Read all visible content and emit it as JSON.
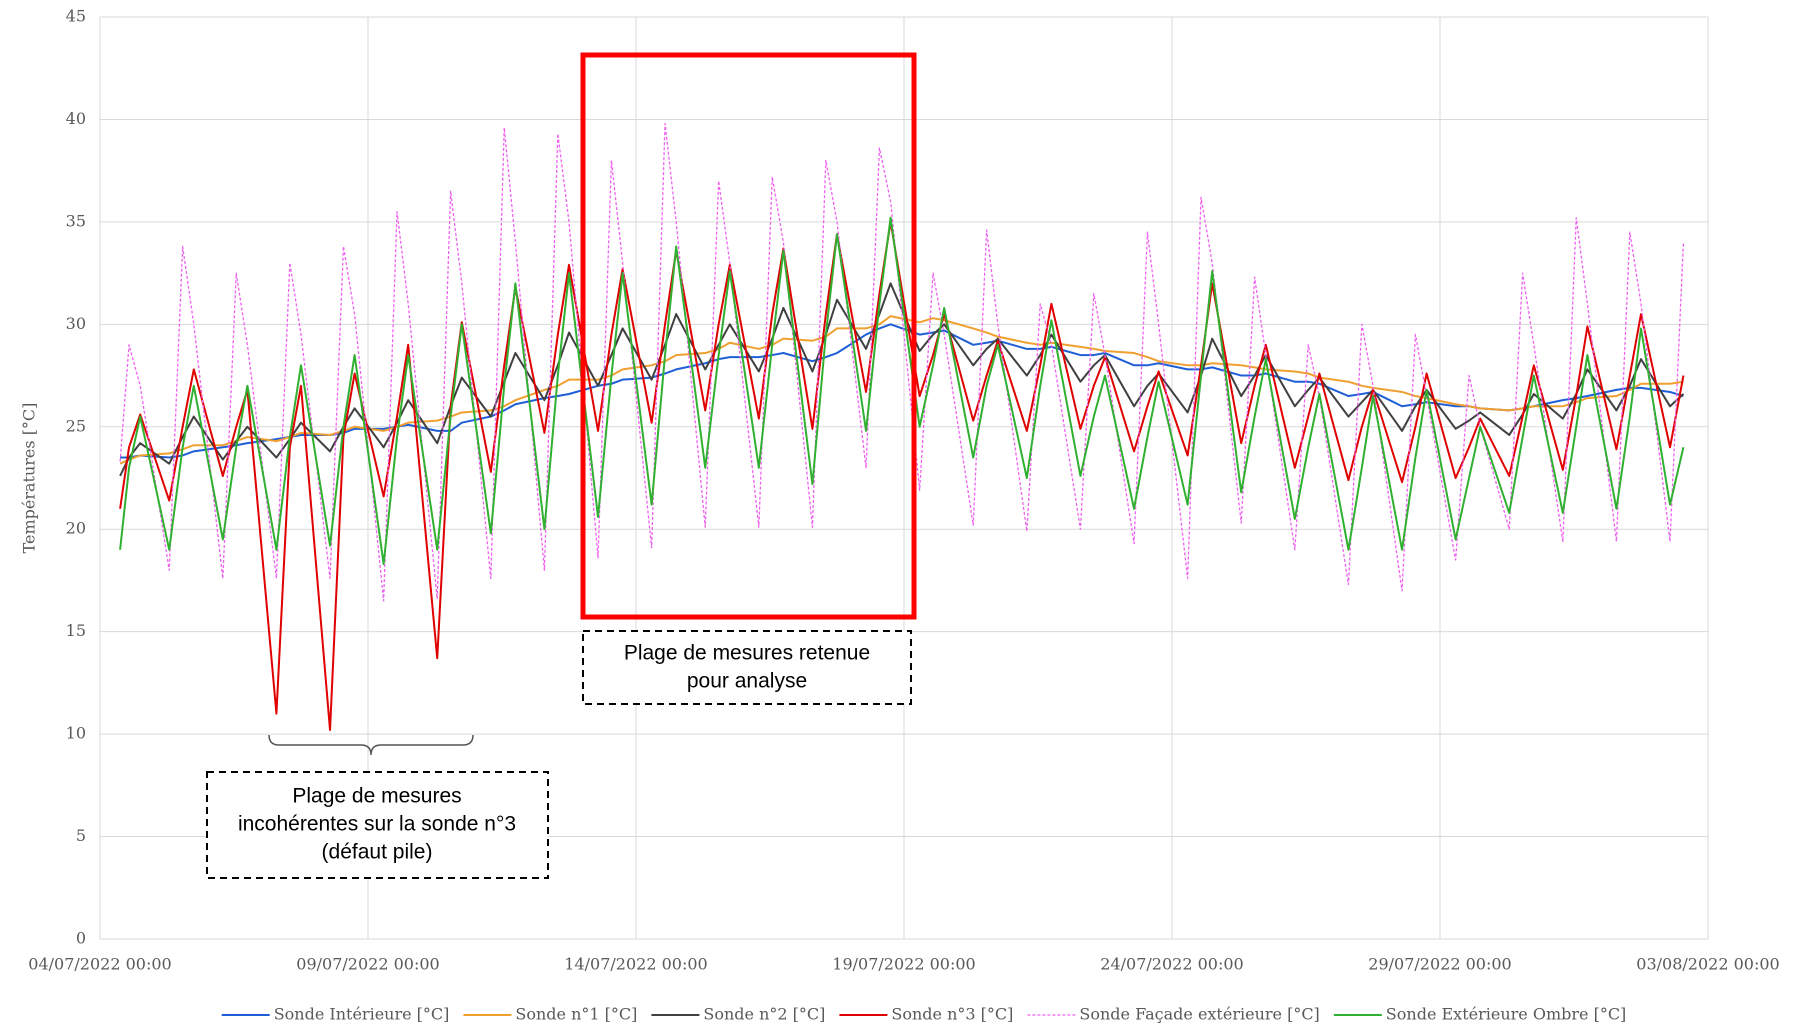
{
  "chart_data": {
    "type": "line",
    "ylabel": "Températures [°C]",
    "ylim": [
      0,
      45
    ],
    "yticks": [
      0,
      5,
      10,
      15,
      20,
      25,
      30,
      35,
      40,
      45
    ],
    "xlim": [
      "04/07/2022 00:00",
      "03/08/2022 00:00"
    ],
    "xticks": [
      "04/07/2022 00:00",
      "09/07/2022 00:00",
      "14/07/2022 00:00",
      "19/07/2022 00:00",
      "24/07/2022 00:00",
      "29/07/2022 00:00",
      "03/08/2022 00:00"
    ],
    "grid": true,
    "legend": "bottom",
    "annotations": [
      {
        "lines": [
          "Plage de mesures retenue",
          "pour analyse"
        ]
      },
      {
        "lines": [
          "Plage de mesures",
          "incohérentes sur la sonde n°3",
          "(défaut pile)"
        ]
      }
    ],
    "x": [
      "04/07/2022 09:00",
      "04/07/2022 13:00",
      "04/07/2022 18:00",
      "05/07/2022 07:00",
      "05/07/2022 13:00",
      "05/07/2022 18:00",
      "06/07/2022 07:00",
      "06/07/2022 13:00",
      "06/07/2022 18:00",
      "07/07/2022 07:00",
      "07/07/2022 13:00",
      "07/07/2022 18:00",
      "08/07/2022 07:00",
      "08/07/2022 13:00",
      "08/07/2022 18:00",
      "09/07/2022 07:00",
      "09/07/2022 13:00",
      "09/07/2022 18:00",
      "10/07/2022 07:00",
      "10/07/2022 13:00",
      "10/07/2022 18:00",
      "11/07/2022 07:00",
      "11/07/2022 13:00",
      "11/07/2022 18:00",
      "12/07/2022 07:00",
      "12/07/2022 13:00",
      "12/07/2022 18:00",
      "13/07/2022 07:00",
      "13/07/2022 13:00",
      "13/07/2022 18:00",
      "14/07/2022 07:00",
      "14/07/2022 13:00",
      "14/07/2022 18:00",
      "15/07/2022 07:00",
      "15/07/2022 13:00",
      "15/07/2022 18:00",
      "16/07/2022 07:00",
      "16/07/2022 13:00",
      "16/07/2022 18:00",
      "17/07/2022 07:00",
      "17/07/2022 13:00",
      "17/07/2022 18:00",
      "18/07/2022 07:00",
      "18/07/2022 13:00",
      "18/07/2022 18:00",
      "19/07/2022 07:00",
      "19/07/2022 13:00",
      "19/07/2022 18:00",
      "20/07/2022 07:00",
      "20/07/2022 13:00",
      "20/07/2022 18:00",
      "21/07/2022 07:00",
      "21/07/2022 13:00",
      "21/07/2022 18:00",
      "22/07/2022 07:00",
      "22/07/2022 13:00",
      "22/07/2022 18:00",
      "23/07/2022 07:00",
      "23/07/2022 13:00",
      "23/07/2022 18:00",
      "24/07/2022 07:00",
      "24/07/2022 13:00",
      "24/07/2022 18:00",
      "25/07/2022 07:00",
      "25/07/2022 13:00",
      "25/07/2022 18:00",
      "26/07/2022 07:00",
      "26/07/2022 13:00",
      "26/07/2022 18:00",
      "27/07/2022 07:00",
      "27/07/2022 13:00",
      "27/07/2022 18:00",
      "28/07/2022 07:00",
      "28/07/2022 13:00",
      "28/07/2022 18:00",
      "29/07/2022 07:00",
      "29/07/2022 13:00",
      "29/07/2022 18:00",
      "30/07/2022 07:00",
      "30/07/2022 13:00",
      "30/07/2022 18:00",
      "31/07/2022 07:00",
      "31/07/2022 13:00",
      "31/07/2022 18:00",
      "01/08/2022 07:00",
      "01/08/2022 13:00",
      "01/08/2022 18:00",
      "02/08/2022 07:00",
      "02/08/2022 13:00"
    ],
    "series": [
      {
        "name": "Sonde Intérieure [°C]",
        "color": "#1f5fd6",
        "dashed": false,
        "values": [
          23.5,
          23.5,
          23.6,
          23.5,
          23.6,
          23.8,
          24,
          24.1,
          24.2,
          24.4,
          24.5,
          24.6,
          24.6,
          24.7,
          24.9,
          24.9,
          25,
          25.1,
          24.8,
          24.8,
          25.2,
          25.5,
          25.8,
          26.1,
          26.4,
          26.5,
          26.6,
          27,
          27.1,
          27.3,
          27.4,
          27.6,
          27.8,
          28.1,
          28.3,
          28.4,
          28.4,
          28.5,
          28.6,
          28.2,
          28.4,
          28.6,
          29.5,
          29.8,
          30,
          29.5,
          29.6,
          29.7,
          29,
          29.1,
          29.2,
          28.8,
          28.8,
          28.9,
          28.5,
          28.5,
          28.6,
          28,
          28,
          28.1,
          27.8,
          27.8,
          27.9,
          27.5,
          27.5,
          27.6,
          27.2,
          27.2,
          27.1,
          26.5,
          26.6,
          26.7,
          26,
          26.1,
          26.2,
          26,
          26,
          25.9,
          25.8,
          25.9,
          26,
          26.3,
          26.4,
          26.5,
          26.8,
          26.9,
          26.9,
          26.7,
          26.5
        ]
      },
      {
        "name": "Sonde n°1 [°C]",
        "color": "#f0a030",
        "dashed": false,
        "values": [
          23.2,
          23.4,
          23.6,
          23.7,
          23.9,
          24.1,
          24.1,
          24.3,
          24.5,
          24.3,
          24.5,
          24.7,
          24.6,
          24.8,
          25,
          24.8,
          25,
          25.2,
          25.3,
          25.5,
          25.7,
          25.8,
          26,
          26.3,
          26.8,
          27,
          27.3,
          27.3,
          27.5,
          27.8,
          28,
          28.2,
          28.5,
          28.6,
          28.8,
          29.1,
          28.8,
          29,
          29.3,
          29.2,
          29.4,
          29.8,
          29.8,
          30,
          30.4,
          30.1,
          30.3,
          30.2,
          29.8,
          29.6,
          29.4,
          29.1,
          29,
          29.1,
          28.9,
          28.8,
          28.7,
          28.6,
          28.4,
          28.2,
          28,
          28,
          28.1,
          28,
          27.9,
          27.8,
          27.7,
          27.6,
          27.4,
          27.2,
          27,
          26.9,
          26.7,
          26.5,
          26.4,
          26.1,
          26,
          25.9,
          25.8,
          25.9,
          26,
          26,
          26.2,
          26.4,
          26.5,
          26.8,
          27.1,
          27.1,
          27.2
        ]
      },
      {
        "name": "Sonde n°2 [°C]",
        "color": "#404040",
        "dashed": false,
        "values": [
          22.6,
          23.5,
          24.2,
          23.2,
          24.5,
          25.5,
          23.4,
          24.3,
          25,
          23.5,
          24.4,
          25.2,
          23.8,
          25,
          25.9,
          24,
          25.2,
          26.3,
          24.2,
          26,
          27.4,
          25.5,
          27.2,
          28.6,
          26.3,
          28,
          29.6,
          27,
          28.5,
          29.8,
          27.3,
          29,
          30.5,
          27.8,
          29,
          30,
          27.7,
          29.3,
          30.8,
          27.7,
          29.5,
          31.2,
          28.8,
          30.5,
          32,
          28.7,
          29.5,
          30,
          28,
          28.8,
          29.3,
          27.5,
          28.5,
          29.5,
          27.2,
          28,
          28.5,
          26,
          27,
          27.6,
          25.7,
          27.5,
          29.3,
          26.5,
          27.5,
          28.5,
          26,
          26.8,
          27.4,
          25.5,
          26.2,
          26.8,
          24.8,
          26,
          26.8,
          24.9,
          25.3,
          25.7,
          24.6,
          25.6,
          26.6,
          25.4,
          26.6,
          27.8,
          25.8,
          27,
          28.3,
          26,
          26.6
        ]
      },
      {
        "name": "Sonde n°3 [°C]",
        "color": "#e00000",
        "dashed": false,
        "values": [
          21,
          24,
          25.6,
          21.4,
          25,
          27.8,
          22.6,
          25,
          26.8,
          11,
          24,
          27,
          10.2,
          24.5,
          27.6,
          21.6,
          25.5,
          29,
          13.7,
          26,
          30.1,
          22.8,
          28,
          31.8,
          24.7,
          29.5,
          32.9,
          24.8,
          29.5,
          32.7,
          25.2,
          30,
          33.6,
          25.8,
          30,
          32.9,
          25.4,
          30.5,
          33.7,
          24.9,
          30.5,
          34.4,
          26.7,
          31.5,
          35,
          26.5,
          28.5,
          30.5,
          25.3,
          27.5,
          29.2,
          24.8,
          28,
          31,
          24.9,
          27,
          28.4,
          23.8,
          26,
          27.7,
          23.6,
          28,
          32,
          24.2,
          27,
          29,
          23,
          25.5,
          27.6,
          22.4,
          25,
          26.8,
          22.3,
          25,
          27.6,
          22.5,
          24,
          25.4,
          22.6,
          25.5,
          28,
          22.9,
          26.5,
          29.9,
          23.9,
          27.5,
          30.5,
          24,
          27.5
        ]
      },
      {
        "name": "Sonde Façade extérieure [°C]",
        "color": "#f060f0",
        "dashed": true,
        "values": [
          23.3,
          29,
          27,
          18,
          33.8,
          30,
          17.6,
          32.5,
          29,
          17.6,
          33,
          29.5,
          17.6,
          33.8,
          30.5,
          16.5,
          35.5,
          31,
          16.6,
          36.5,
          32,
          17.6,
          39.6,
          34,
          18,
          39.3,
          35,
          18.6,
          38,
          33,
          19.1,
          39.8,
          35,
          20.1,
          37,
          33,
          20.1,
          37.2,
          34,
          20.1,
          38,
          35,
          23,
          38.6,
          36,
          21.9,
          32.5,
          29.5,
          20.2,
          34.6,
          30,
          19.9,
          31,
          29,
          20,
          31.5,
          28.5,
          19.3,
          34.5,
          30,
          17.6,
          36.2,
          33,
          20.3,
          32.3,
          28.5,
          19,
          29,
          26.5,
          17.3,
          30,
          27,
          17,
          29.5,
          26.5,
          18.5,
          27.5,
          25,
          20,
          32.5,
          29,
          19.4,
          35.2,
          31,
          19.4,
          34.5,
          31,
          19.4,
          34
        ]
      },
      {
        "name": "Sonde Extérieure Ombre [°C]",
        "color": "#30b030",
        "dashed": false,
        "values": [
          19,
          23,
          25.5,
          19,
          24,
          27,
          19.5,
          24,
          27,
          19,
          24.5,
          28,
          19.2,
          25,
          28.5,
          18.3,
          24.5,
          28.5,
          19,
          25.5,
          30,
          19.8,
          27,
          32,
          20,
          27.5,
          32.5,
          20.6,
          27.5,
          32.5,
          21.2,
          28.5,
          33.8,
          23,
          28.5,
          32.6,
          23,
          29,
          33.6,
          22.2,
          29.5,
          34.4,
          24.8,
          31,
          35.2,
          25,
          28,
          30.8,
          23.5,
          27,
          29,
          22.5,
          27,
          30.2,
          22.6,
          25.5,
          27.5,
          21,
          24.5,
          27.2,
          21.2,
          27.5,
          32.6,
          21.8,
          25.5,
          28.3,
          20.5,
          24,
          26.6,
          19,
          23,
          26.5,
          19,
          23.5,
          26.8,
          19.5,
          22.5,
          25,
          20.8,
          24.5,
          27.5,
          20.8,
          25,
          28.5,
          21,
          25.5,
          29.8,
          21.2,
          24
        ]
      }
    ]
  }
}
